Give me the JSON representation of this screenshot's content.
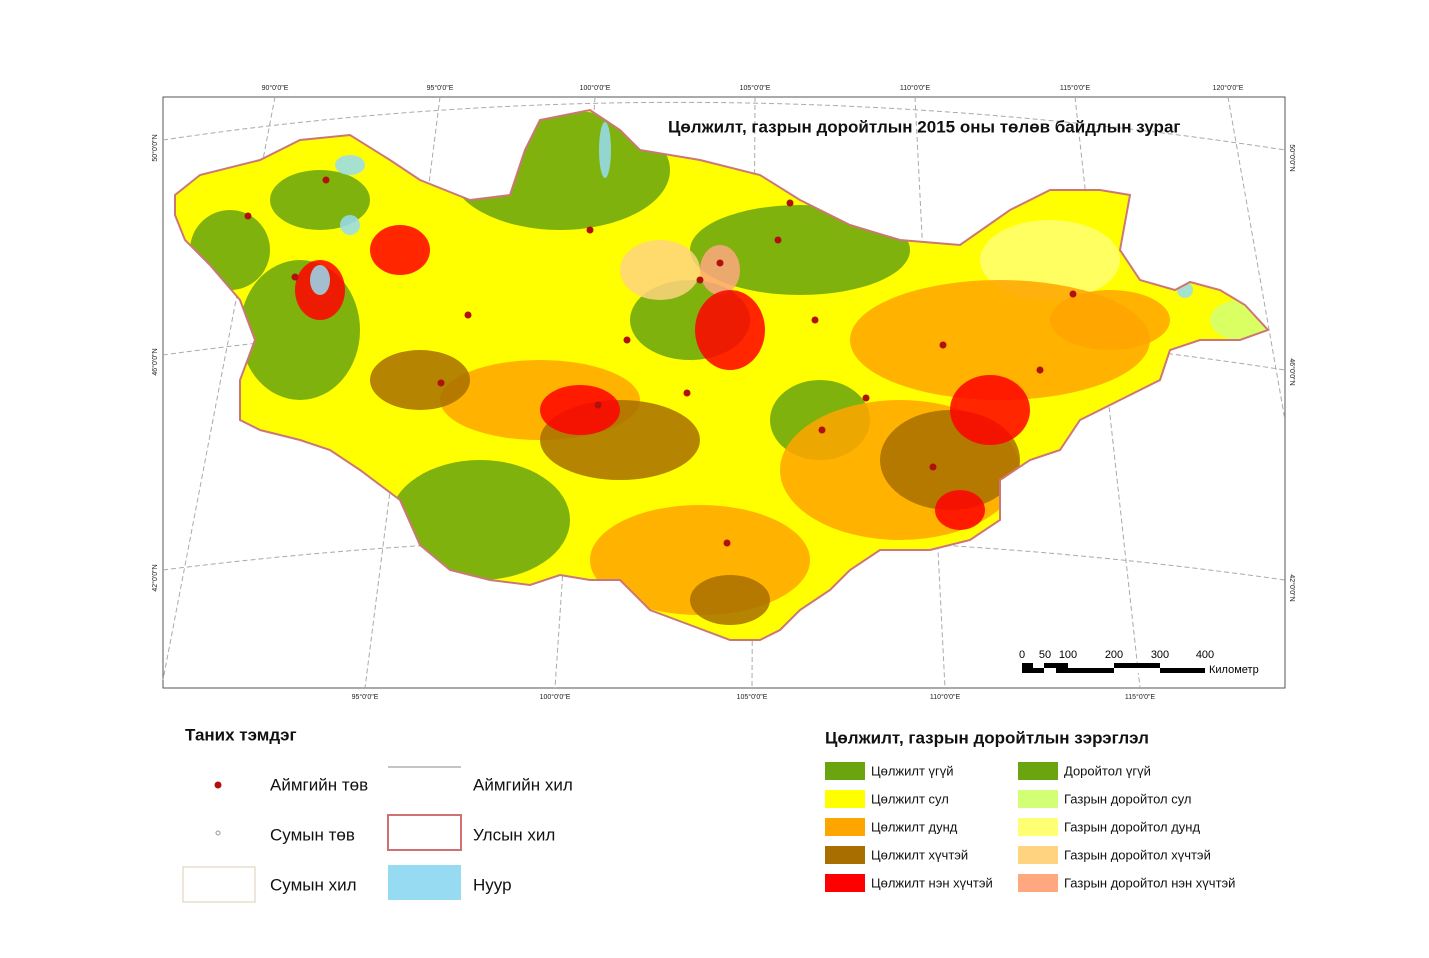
{
  "map": {
    "title": "Цөлжилт, газрын доройтлын 2015 оны төлөв байдлын зураг",
    "graticule_top": [
      "90°0'0\"E",
      "95°0'0\"E",
      "100°0'0\"E",
      "105°0'0\"E",
      "110°0'0\"E",
      "115°0'0\"E",
      "120°0'0\"E"
    ],
    "graticule_bottom": [
      "95°0'0\"E",
      "100°0'0\"E",
      "105°0'0\"E",
      "110°0'0\"E",
      "115°0'0\"E"
    ],
    "graticule_left": [
      "50°0'0\"N",
      "46°0'0\"N",
      "42°0'0\"N"
    ],
    "graticule_right": [
      "50°0'0\"N",
      "46°0'0\"N",
      "42°0'0\"N"
    ],
    "scale_bar": {
      "labels": [
        "0",
        "50",
        "100",
        "200",
        "300",
        "400"
      ],
      "unit": "Километр"
    }
  },
  "legend": {
    "title": "Таних тэмдэг",
    "items": [
      "Аймгийн төв",
      "Сумын төв",
      "Сумын хил",
      "Аймгийн хил",
      "Улсын хил",
      "Нуур"
    ]
  },
  "classes": {
    "title": "Цөлжилт, газрын доройтлын зэрэглэл",
    "items": [
      {
        "label": "Цөлжилт үгүй",
        "color": "#6aa40f"
      },
      {
        "label": "Цөлжилт сул",
        "color": "#ffff00"
      },
      {
        "label": "Цөлжилт дунд",
        "color": "#ffa500"
      },
      {
        "label": "Цөлжилт хүчтэй",
        "color": "#a86f00"
      },
      {
        "label": "Цөлжилт нэн хүчтэй",
        "color": "#ff0000"
      },
      {
        "label": "Доройтол үгүй",
        "color": "#6aa40f"
      },
      {
        "label": "Газрын доройтол сул",
        "color": "#d2ff73"
      },
      {
        "label": "Газрын доройтол дунд",
        "color": "#ffff73"
      },
      {
        "label": "Газрын доройтол хүчтэй",
        "color": "#ffd37f"
      },
      {
        "label": "Газрын доройтол нэн хүчтэй",
        "color": "#ffa77f"
      }
    ]
  }
}
